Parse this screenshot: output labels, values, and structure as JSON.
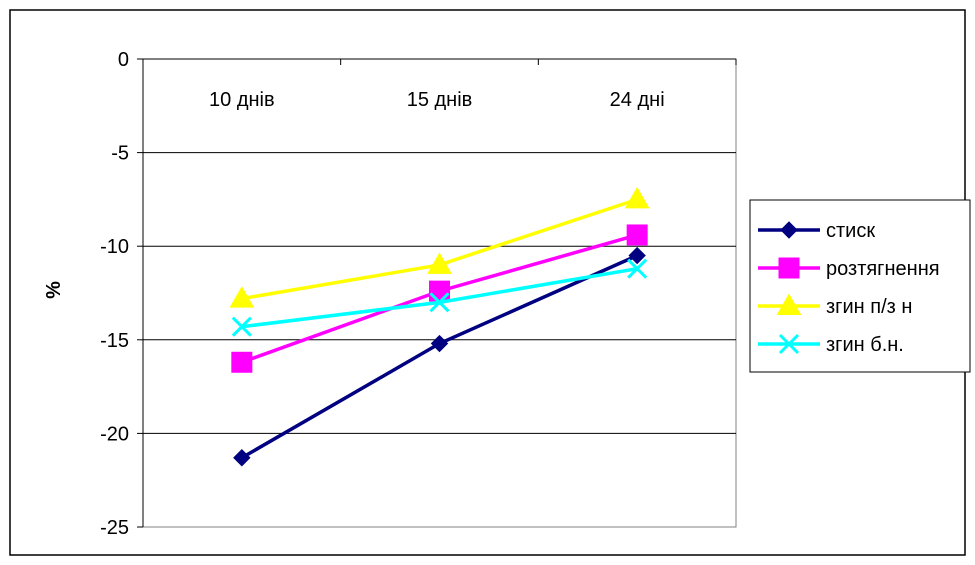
{
  "chart_data": {
    "type": "line",
    "title": "",
    "xlabel": "",
    "ylabel": "%",
    "categories": [
      "10 днів",
      "15 днів",
      "24 дні"
    ],
    "ylim": [
      -25,
      0
    ],
    "yticks": [
      0,
      -5,
      -10,
      -15,
      -20,
      -25
    ],
    "grid": true,
    "legend_position": "right",
    "series": [
      {
        "name": "стиск",
        "values": [
          -21.3,
          -15.2,
          -10.5
        ],
        "color": "#000080",
        "marker": "diamond"
      },
      {
        "name": "розтягнення",
        "values": [
          -16.2,
          -12.4,
          -9.4
        ],
        "color": "#ff00ff",
        "marker": "square"
      },
      {
        "name": "згин п/з н",
        "values": [
          -12.8,
          -11.0,
          -7.5
        ],
        "color": "#ffff00",
        "marker": "triangle"
      },
      {
        "name": "згин б.н.",
        "values": [
          -14.3,
          -13.0,
          -11.2
        ],
        "color": "#00ffff",
        "marker": "x"
      }
    ]
  }
}
